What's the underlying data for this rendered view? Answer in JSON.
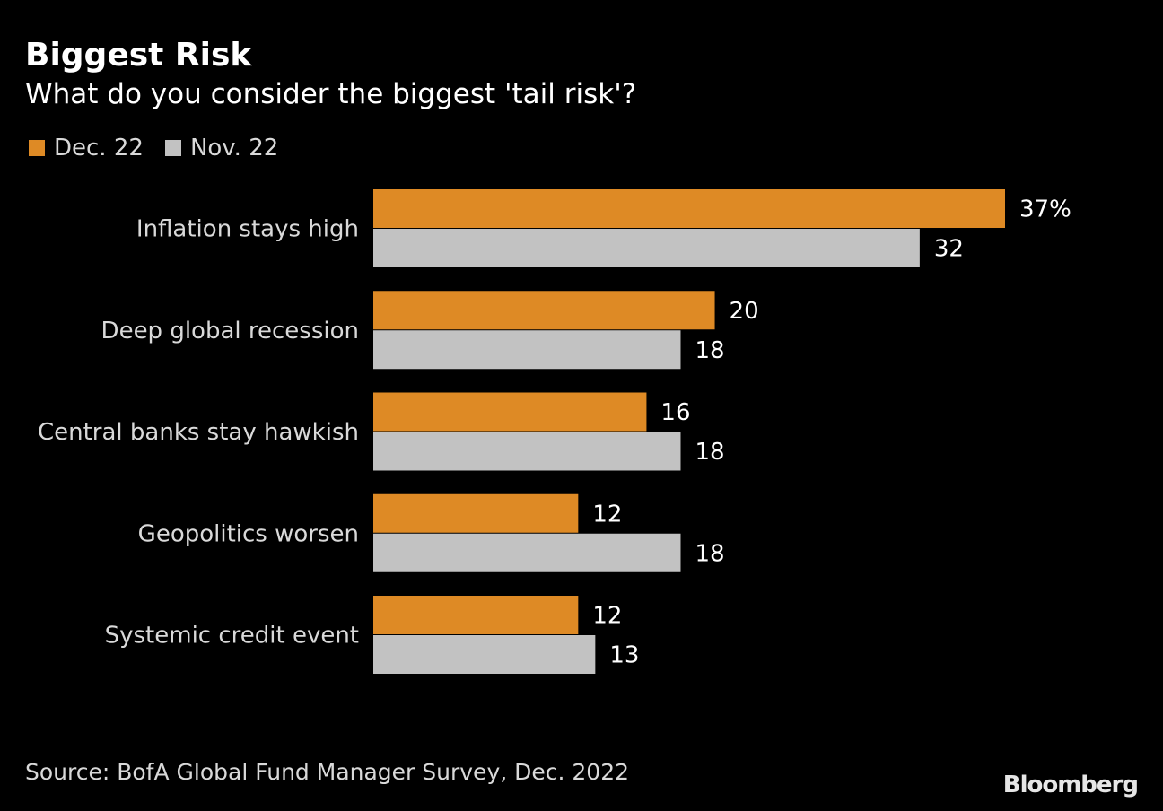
{
  "header": {
    "title": "Biggest Risk",
    "subtitle": "What do you consider the biggest 'tail risk'?"
  },
  "footer": {
    "source": "Source: BofA Global Fund Manager Survey, Dec. 2022",
    "brand": "Bloomberg"
  },
  "chart_data": {
    "type": "bar",
    "orientation": "horizontal",
    "title": "Biggest Risk",
    "subtitle": "What do you consider the biggest 'tail risk'?",
    "categories": [
      "Inflation stays high",
      "Deep global recession",
      "Central banks stay hawkish",
      "Geopolitics worsen",
      "Systemic credit event"
    ],
    "series": [
      {
        "name": "Dec. 22",
        "color": "#de8a25",
        "values": [
          37,
          20,
          16,
          12,
          12
        ],
        "labels": [
          "37%",
          "20",
          "16",
          "12",
          "12"
        ]
      },
      {
        "name": "Nov. 22",
        "color": "#c2c2c2",
        "values": [
          32,
          18,
          18,
          18,
          13
        ],
        "labels": [
          "32",
          "18",
          "18",
          "18",
          "13"
        ]
      }
    ],
    "xlim": [
      0,
      37
    ],
    "legend_position": "top-left",
    "grid": false,
    "xlabel": "",
    "ylabel": ""
  },
  "colors": {
    "background": "#000000",
    "text": "#ffffff",
    "category_text": "#d9d9d9"
  }
}
